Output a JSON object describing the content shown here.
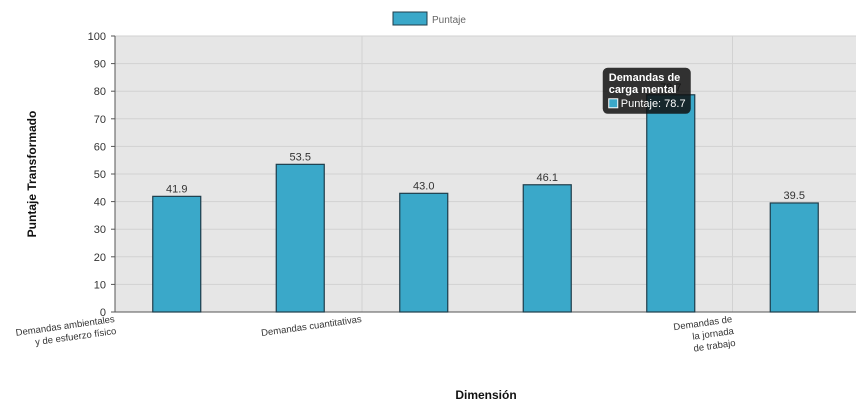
{
  "chart_data": {
    "type": "bar",
    "categories": [
      "Demandas ambientales y de esfuerzo físico",
      "",
      "Demandas cuantitativas",
      "",
      "Demandas de carga mental",
      "Demandas de la jornada de trabajo"
    ],
    "category_tick_labels": [
      [
        "Demandas ambientales",
        "y de esfuerzo físico"
      ],
      [],
      [
        "Demandas cuantitativas"
      ],
      [],
      [],
      [
        "Demandas de",
        "la jornada",
        "de trabajo"
      ]
    ],
    "series": [
      {
        "name": "Puntaje",
        "values": [
          41.9,
          53.5,
          43.0,
          46.1,
          78.7,
          39.5
        ]
      }
    ],
    "value_labels": [
      "41.9",
      "53.5",
      "43.0",
      "46.1",
      "78.7",
      "39.5"
    ],
    "xlabel": "Dimensión",
    "ylabel": "Puntaje Transformado",
    "ylim": [
      0,
      100
    ],
    "yticks": [
      0,
      10,
      20,
      30,
      40,
      50,
      60,
      70,
      80,
      90,
      100
    ],
    "grid": true,
    "legend_position": "top",
    "bar_color": "#3aa8c9",
    "bar_border_color": "#1f3d4a",
    "plot_background": "#e6e6e6",
    "tooltip": {
      "category_index": 4,
      "title_lines": [
        "Demandas de",
        "carga mental"
      ],
      "body": "Puntaje: 78.7"
    }
  }
}
